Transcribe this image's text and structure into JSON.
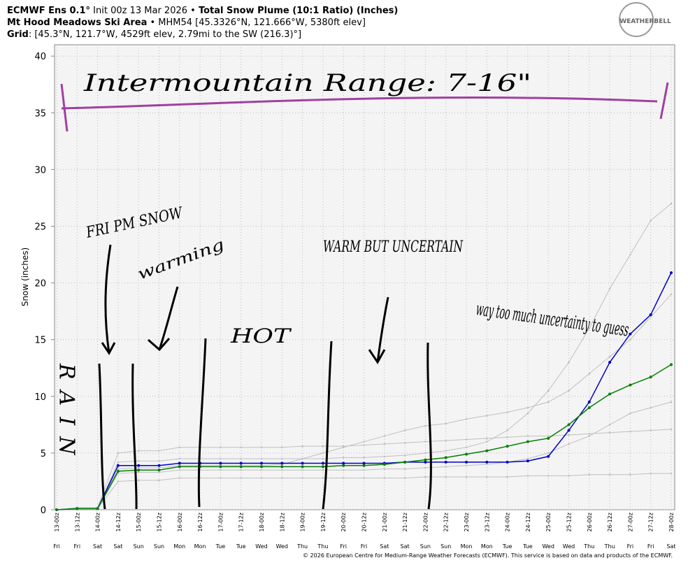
{
  "chart_data": {
    "type": "line",
    "model": "ECMWF Ens 0.1°",
    "init": "Init 00z 13 Mar 2026",
    "title": "Total Snow Plume (10:1 Ratio) (Inches)",
    "site": "Mt Hood Meadows Ski Area",
    "site_info": "MHM54 [45.3326°N, 121.666°W, 5380ft elev]",
    "grid_label": "Grid",
    "grid_info": ": [45.3°N, 121.7°W, 4529ft elev, 2.79mi to the SW (216.3)°]",
    "logo": "WEATHERBELL",
    "ylabel": "Snow (inches)",
    "footer": "© 2026 European Centre for Medium-Range Weather Forecasts (ECMWF). This service is based on data and products of the ECMWF.",
    "categories": [
      "13-00z",
      "13-12z",
      "14-00z",
      "14-12z",
      "15-00z",
      "15-12z",
      "16-00z",
      "16-12z",
      "17-00z",
      "17-12z",
      "18-00z",
      "18-12z",
      "19-00z",
      "19-12z",
      "20-00z",
      "20-12z",
      "21-00z",
      "21-12z",
      "22-00z",
      "22-12z",
      "23-00z",
      "23-12z",
      "24-00z",
      "24-12z",
      "25-00z",
      "25-12z",
      "26-00z",
      "26-12z",
      "27-00z",
      "27-12z",
      "28-00z"
    ],
    "days": [
      "Fri",
      "Fri",
      "Sat",
      "Sat",
      "Sun",
      "Sun",
      "Mon",
      "Mon",
      "Tue",
      "Tue",
      "Wed",
      "Wed",
      "Thu",
      "Thu",
      "Fri",
      "Fri",
      "Sat",
      "Sat",
      "Sun",
      "Sun",
      "Mon",
      "Mon",
      "Tue",
      "Tue",
      "Wed",
      "Wed",
      "Thu",
      "Thu",
      "Fri",
      "Fri",
      "Sat"
    ],
    "ylim": [
      0,
      41
    ],
    "yticks": [
      0,
      5,
      10,
      15,
      20,
      25,
      30,
      35,
      40
    ],
    "grid": true,
    "series": [
      {
        "color": "#c0c0c0",
        "values": [
          0,
          0.1,
          0.1,
          2.5,
          2.6,
          2.6,
          2.8,
          2.8,
          2.8,
          2.8,
          2.8,
          2.8,
          2.8,
          2.8,
          2.8,
          2.8,
          2.8,
          2.8,
          2.9,
          2.9,
          2.9,
          2.9,
          2.9,
          3.0,
          3.0,
          3.0,
          3.1,
          3.1,
          3.1,
          3.2,
          3.2
        ]
      },
      {
        "color": "#c0c0c0",
        "values": [
          0,
          0.2,
          0.2,
          5.0,
          5.2,
          5.2,
          5.5,
          5.5,
          5.5,
          5.5,
          5.5,
          5.5,
          5.6,
          5.6,
          5.6,
          5.7,
          5.8,
          5.9,
          6.0,
          6.1,
          6.2,
          6.3,
          6.4,
          6.5,
          6.5,
          6.6,
          6.7,
          6.8,
          6.9,
          7.0,
          7.1
        ]
      },
      {
        "color": "#c0c0c0",
        "values": [
          0,
          0.1,
          0.1,
          3.6,
          3.7,
          3.7,
          3.9,
          3.9,
          3.9,
          3.9,
          3.9,
          4.0,
          4.5,
          5.0,
          5.5,
          6.0,
          6.5,
          7.0,
          7.4,
          7.6,
          8.0,
          8.3,
          8.6,
          9.0,
          9.5,
          10.5,
          12.0,
          13.5,
          15.0,
          17.0,
          19.0
        ]
      },
      {
        "color": "#c0c0c0",
        "values": [
          0,
          0.1,
          0.1,
          4.2,
          4.3,
          4.3,
          4.5,
          4.5,
          4.5,
          4.5,
          4.5,
          4.5,
          4.5,
          4.5,
          4.6,
          4.6,
          4.7,
          4.8,
          5.0,
          5.2,
          5.5,
          6.0,
          7.0,
          8.5,
          10.5,
          13.0,
          16.0,
          19.5,
          22.5,
          25.5,
          27.0
        ]
      },
      {
        "color": "#c0c0c0",
        "values": [
          0,
          0.1,
          0.1,
          3.2,
          3.3,
          3.3,
          3.5,
          3.5,
          3.5,
          3.5,
          3.5,
          3.5,
          3.5,
          3.5,
          3.5,
          3.5,
          3.6,
          3.6,
          3.7,
          3.8,
          3.9,
          4.0,
          4.2,
          4.5,
          5.0,
          5.8,
          6.5,
          7.5,
          8.5,
          9.0,
          9.5
        ]
      },
      {
        "color": "#0000cc",
        "values": [
          0,
          0.1,
          0.1,
          3.9,
          3.9,
          3.9,
          4.1,
          4.1,
          4.1,
          4.1,
          4.1,
          4.1,
          4.1,
          4.1,
          4.1,
          4.1,
          4.1,
          4.2,
          4.2,
          4.2,
          4.2,
          4.2,
          4.2,
          4.3,
          4.7,
          7.0,
          9.5,
          13.0,
          15.5,
          17.2,
          20.9
        ]
      },
      {
        "color": "#008000",
        "values": [
          0,
          0.1,
          0.1,
          3.4,
          3.5,
          3.5,
          3.8,
          3.8,
          3.8,
          3.8,
          3.8,
          3.8,
          3.8,
          3.8,
          3.9,
          3.9,
          4.0,
          4.2,
          4.4,
          4.6,
          4.9,
          5.2,
          5.6,
          6.0,
          6.3,
          7.5,
          9.0,
          10.2,
          11.0,
          11.7,
          12.8
        ]
      }
    ],
    "annotations": [
      {
        "text": "Intermountain Range: 7-16\"",
        "color": "#a040a0"
      },
      {
        "text": "FRI PM SNOW",
        "color": "#000000"
      },
      {
        "text": "warming",
        "color": "#000000"
      },
      {
        "text": "HOT",
        "color": "#e02020"
      },
      {
        "text": "WARM BUT UNCERTAIN",
        "color": "#000000"
      },
      {
        "text": "way too much uncertainty to guess",
        "color": "#000000"
      },
      {
        "text": "RAIN",
        "color": "#3030c0"
      }
    ]
  }
}
